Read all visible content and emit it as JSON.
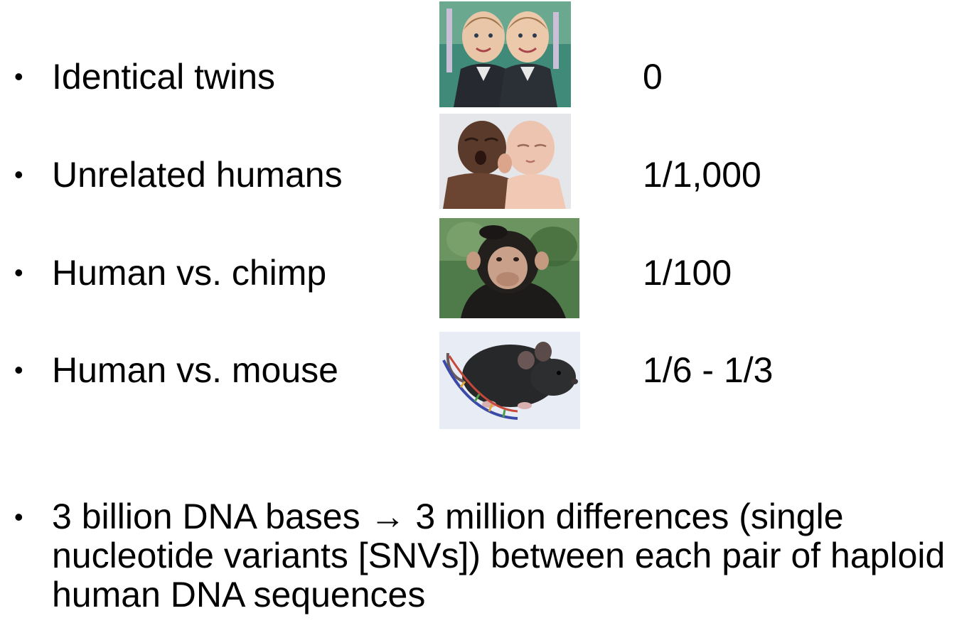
{
  "rows": [
    {
      "label": "Identical twins",
      "value": "0",
      "image_icon": "twins-photo-icon"
    },
    {
      "label": "Unrelated humans",
      "value": "1/1,000",
      "image_icon": "newborns-photo-icon"
    },
    {
      "label": "Human vs. chimp",
      "value": "1/100",
      "image_icon": "chimp-photo-icon"
    },
    {
      "label": "Human vs. mouse",
      "value": "1/6 - 1/3",
      "image_icon": "mouse-dna-photo-icon"
    }
  ],
  "bullet_glyph": "•",
  "note": {
    "part1": "3 billion DNA bases ",
    "arrow": "→",
    "part2": " 3 million differences (single nucleotide variants [SNVs]) between each pair of haploid human DNA  sequences"
  }
}
